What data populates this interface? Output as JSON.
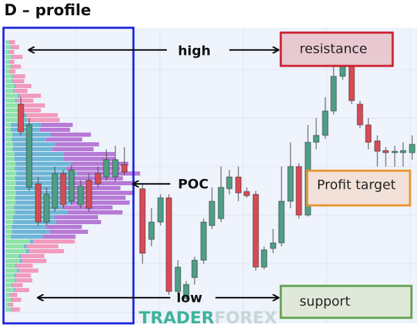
{
  "title": "D – profile",
  "annotations": {
    "high": "high",
    "poc": "POC",
    "low": "low"
  },
  "boxes": {
    "resistance": "resistance",
    "profit_target": "Profit target",
    "support": "support"
  },
  "watermark": {
    "part1": "TRADER",
    "part2": "FOREX"
  }
}
